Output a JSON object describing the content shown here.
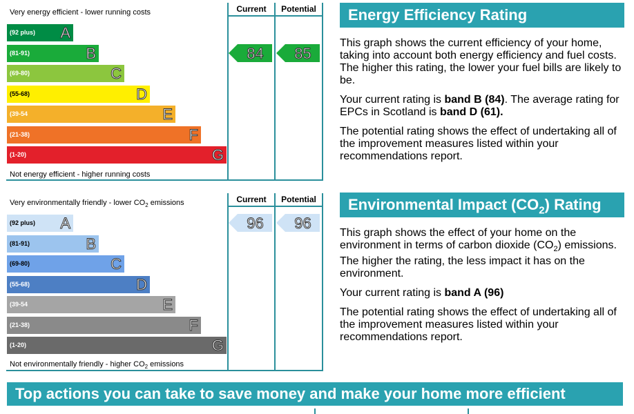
{
  "energy_chart": {
    "top_caption": "Very energy efficient - lower running costs",
    "bottom_caption": "Not energy efficient - higher running costs",
    "col_current": "Current",
    "col_potential": "Potential",
    "bands": [
      {
        "range": "(92 plus)",
        "letter": "A",
        "color": "#008c45"
      },
      {
        "range": "(81-91)",
        "letter": "B",
        "color": "#1aab3a"
      },
      {
        "range": "(69-80)",
        "letter": "C",
        "color": "#8cc63e"
      },
      {
        "range": "(55-68)",
        "letter": "D",
        "color": "#ffef00"
      },
      {
        "range": "(39-54",
        "letter": "E",
        "color": "#f4b02a"
      },
      {
        "range": "(21-38)",
        "letter": "F",
        "color": "#ef7227"
      },
      {
        "range": "(1-20)",
        "letter": "G",
        "color": "#e3202b"
      }
    ],
    "current": {
      "value": "84",
      "band_index": 1,
      "color": "#1aab3a"
    },
    "potential": {
      "value": "85",
      "band_index": 1,
      "color": "#1aab3a"
    }
  },
  "env_chart": {
    "top_caption": "Very environmentally friendly - lower CO",
    "top_caption_sub": "2",
    "top_caption_end": " emissions",
    "bottom_caption": "Not environmentally friendly - higher CO",
    "bottom_caption_sub": "2",
    "bottom_caption_end": " emissions",
    "col_current": "Current",
    "col_potential": "Potential",
    "bands": [
      {
        "range": "(92 plus)",
        "letter": "A",
        "color": "#cfe3f6"
      },
      {
        "range": "(81-91)",
        "letter": "B",
        "color": "#9cc4ee"
      },
      {
        "range": "(69-80)",
        "letter": "C",
        "color": "#6fa2e8"
      },
      {
        "range": "(55-68)",
        "letter": "D",
        "color": "#4d7fc4"
      },
      {
        "range": "(39-54",
        "letter": "E",
        "color": "#a5a5a5"
      },
      {
        "range": "(21-38)",
        "letter": "F",
        "color": "#8a8a8a"
      },
      {
        "range": "(1-20)",
        "letter": "G",
        "color": "#6a6a6a"
      }
    ],
    "current": {
      "value": "96",
      "band_index": 0,
      "color": "#cfe3f6"
    },
    "potential": {
      "value": "96",
      "band_index": 0,
      "color": "#cfe3f6"
    }
  },
  "energy_panel": {
    "title": "Energy Efficiency Rating",
    "p1": "This graph shows the current efficiency of your home, taking into account both energy efficiency and fuel costs. The higher this rating, the lower your fuel bills are likely to be.",
    "p2_a": "Your current rating is ",
    "p2_b": "band B (84)",
    "p2_c": ". The average rating for EPCs in Scotland is ",
    "p2_d": "band D (61).",
    "p3": "The potential rating shows the effect of undertaking all of the improvement measures listed within your recommendations report."
  },
  "env_panel": {
    "title_a": "Environmental Impact (CO",
    "title_sub": "2",
    "title_b": ") Rating",
    "p1_a": "This graph shows the effect of your home on the environment in terms of carbon dioxide (CO",
    "p1_sub": "2",
    "p1_b": ") emissions. The higher the rating, the less impact it has on the environment.",
    "p2_a": "Your current rating is ",
    "p2_b": "band A (96)",
    "p3": "The potential rating shows the effect of undertaking all of the improvement measures listed within your recommendations report."
  },
  "banner": {
    "text": "Top actions you can take to save money and make your home more efficient"
  }
}
